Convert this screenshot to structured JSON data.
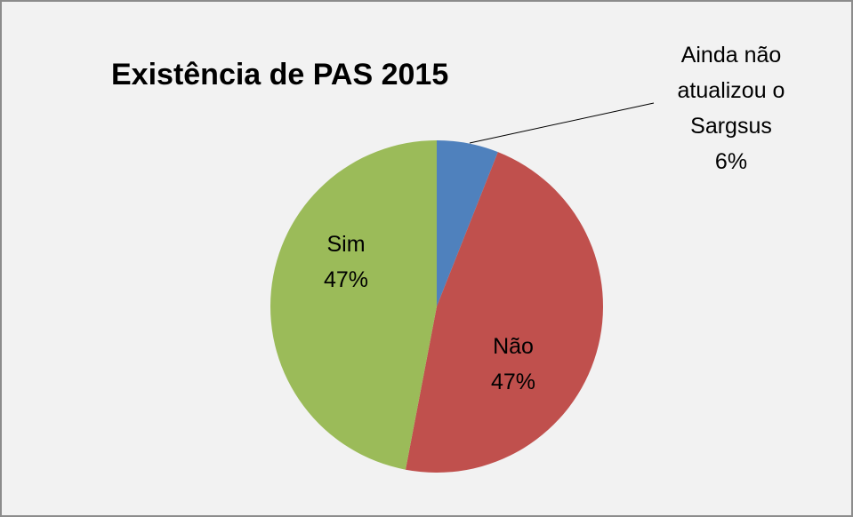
{
  "chart_data": {
    "type": "pie",
    "title": "Existência de PAS 2015",
    "categories": [
      "Ainda não atualizou o Sargsus",
      "Não",
      "Sim"
    ],
    "values": [
      6,
      47,
      47
    ],
    "value_labels": [
      "6%",
      "47%",
      "47%"
    ],
    "colors": [
      "#4f81bd",
      "#c0504d",
      "#9bbb59"
    ]
  }
}
